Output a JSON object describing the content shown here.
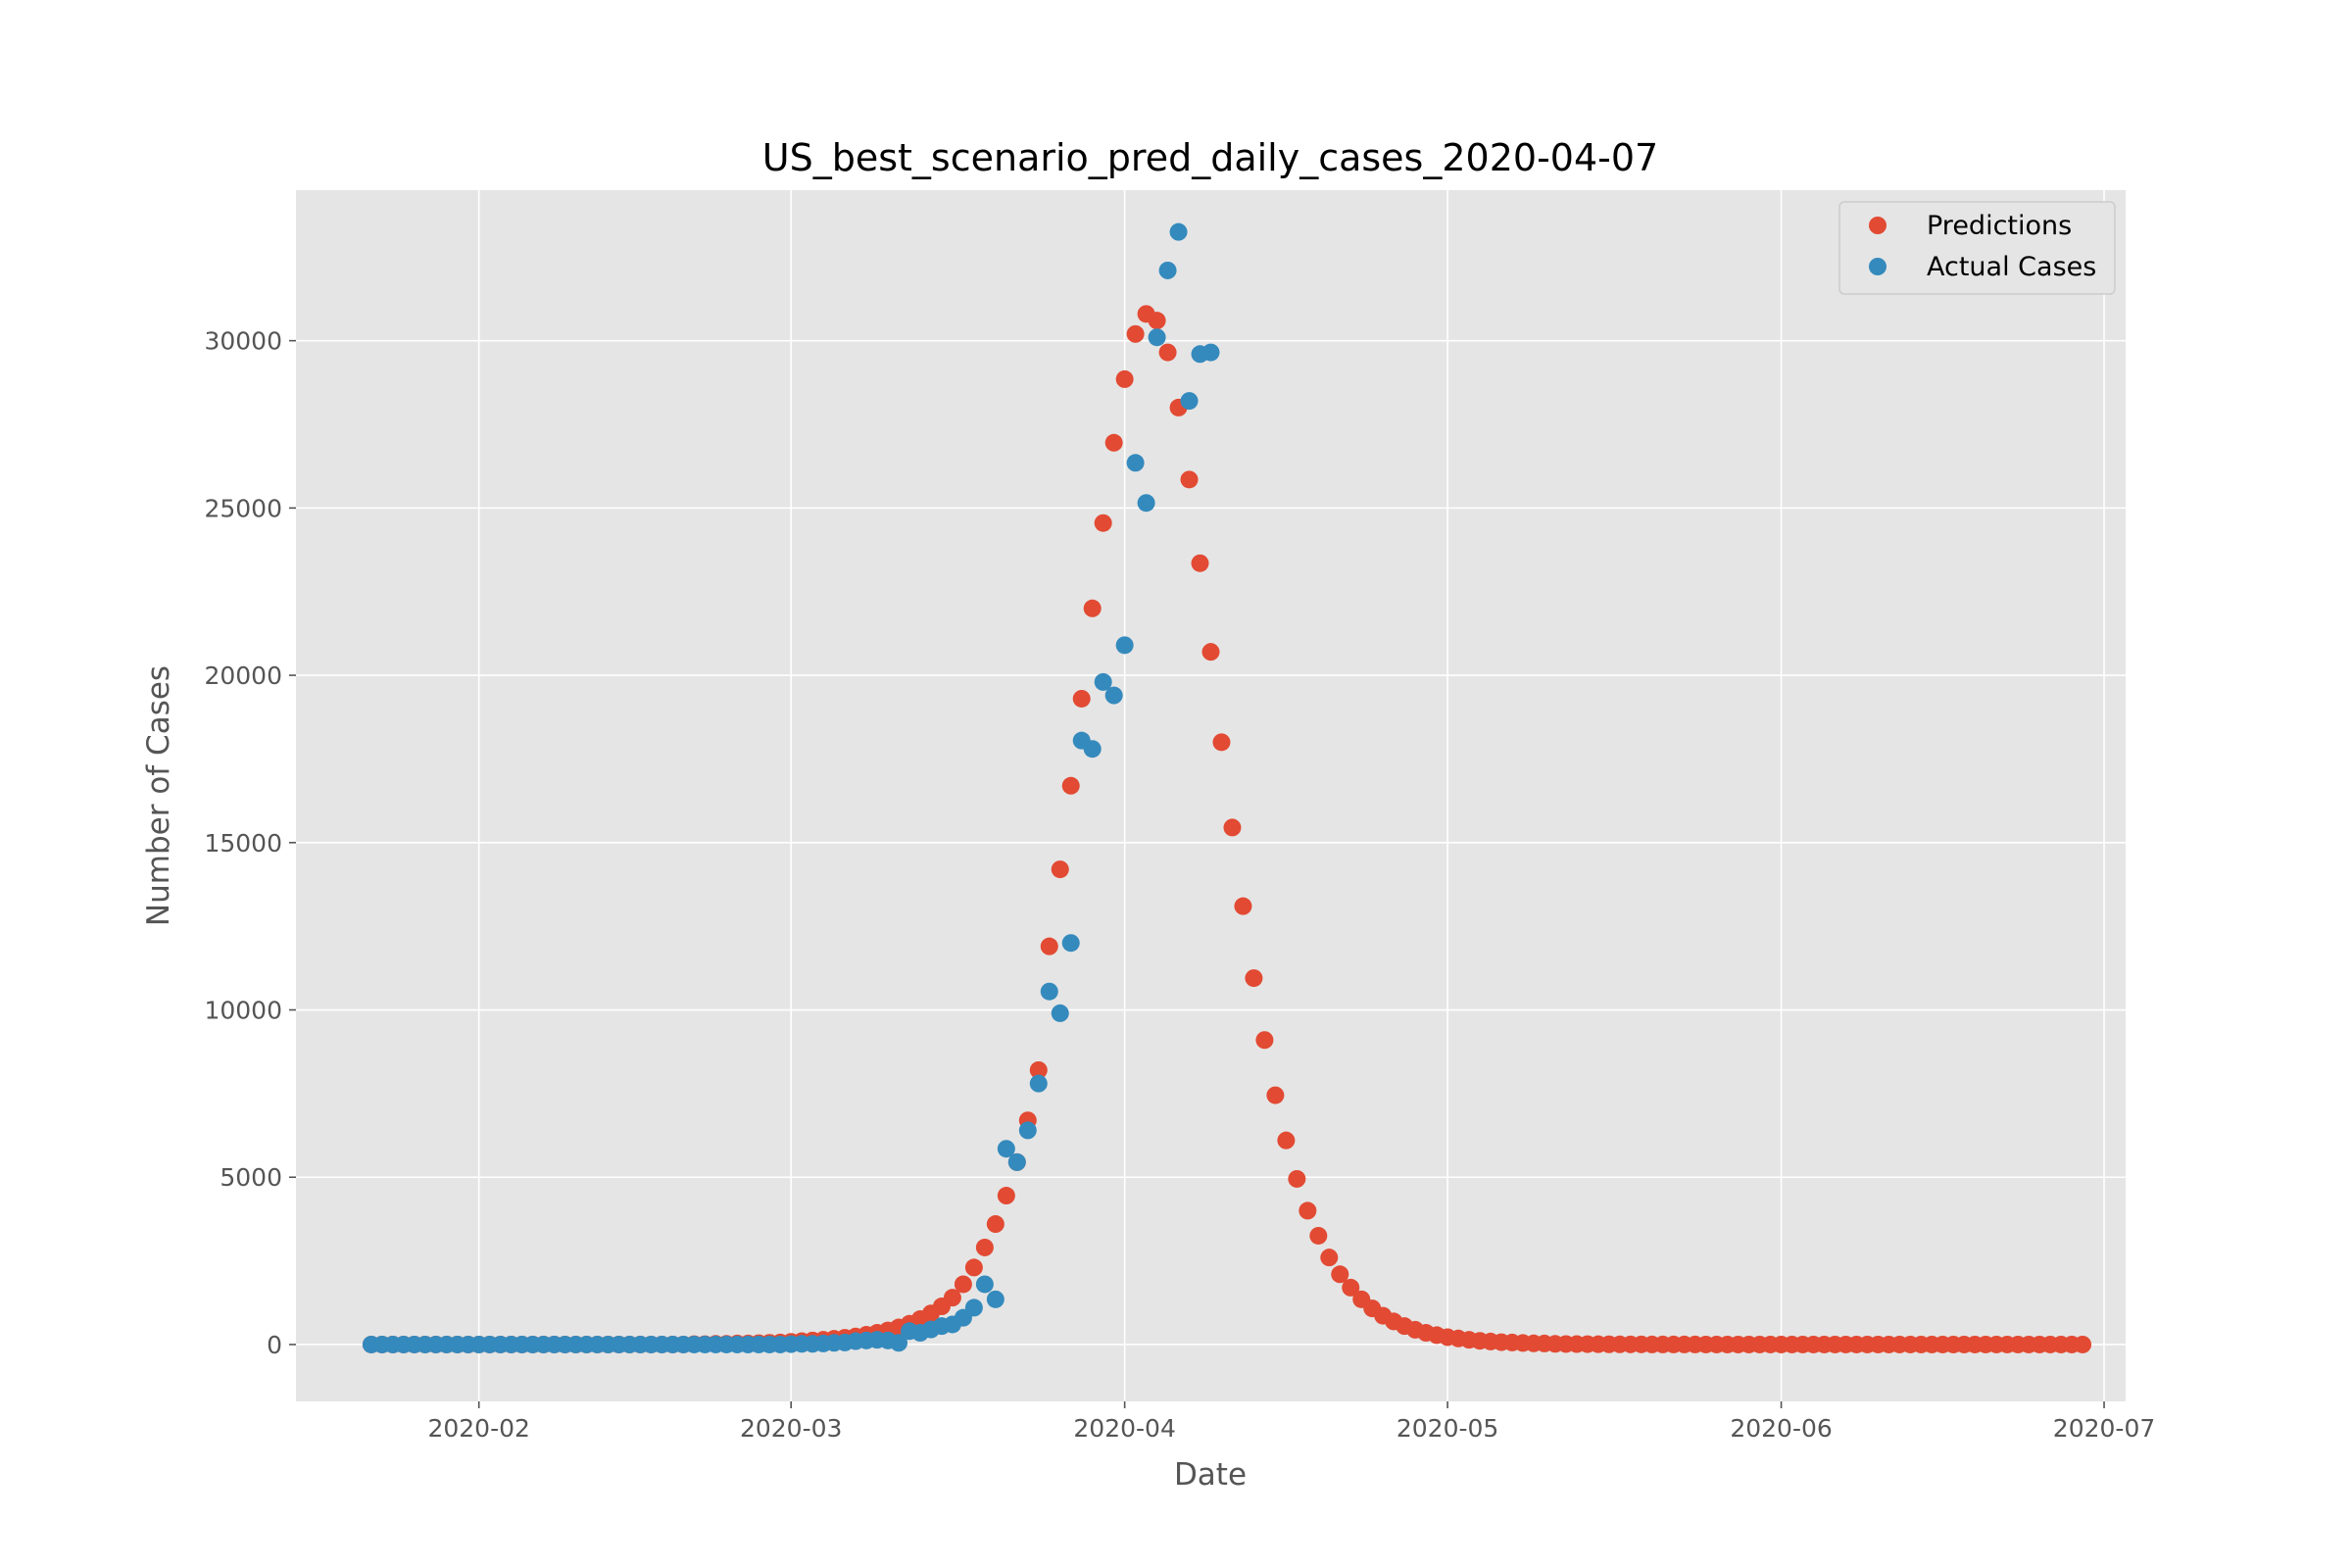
{
  "chart_data": {
    "type": "scatter",
    "title": "US_best_scenario_pred_daily_cases_2020-04-07",
    "xlabel": "Date",
    "ylabel": "Number of Cases",
    "xlim": [
      "2020-01-15",
      "2020-07-03"
    ],
    "ylim": [
      -1700,
      34500
    ],
    "x_ticks": [
      "2020-02",
      "2020-03",
      "2020-04",
      "2020-05",
      "2020-06",
      "2020-07"
    ],
    "y_ticks": [
      0,
      5000,
      10000,
      15000,
      20000,
      25000,
      30000
    ],
    "grid": true,
    "legend_position": "top-right",
    "colors": {
      "Predictions": "#E24A33",
      "Actual Cases": "#348ABD",
      "background": "#E5E5E5",
      "grid": "#FFFFFF"
    },
    "series": [
      {
        "name": "Predictions",
        "points": [
          [
            "2020-01-22",
            0
          ],
          [
            "2020-01-23",
            0
          ],
          [
            "2020-01-24",
            0
          ],
          [
            "2020-01-25",
            0
          ],
          [
            "2020-01-26",
            0
          ],
          [
            "2020-01-27",
            0
          ],
          [
            "2020-01-28",
            0
          ],
          [
            "2020-01-29",
            0
          ],
          [
            "2020-01-30",
            0
          ],
          [
            "2020-01-31",
            0
          ],
          [
            "2020-02-01",
            0
          ],
          [
            "2020-02-02",
            0
          ],
          [
            "2020-02-03",
            0
          ],
          [
            "2020-02-04",
            0
          ],
          [
            "2020-02-05",
            0
          ],
          [
            "2020-02-06",
            0
          ],
          [
            "2020-02-07",
            0
          ],
          [
            "2020-02-08",
            0
          ],
          [
            "2020-02-09",
            0
          ],
          [
            "2020-02-10",
            0
          ],
          [
            "2020-02-11",
            0
          ],
          [
            "2020-02-12",
            0
          ],
          [
            "2020-02-13",
            0
          ],
          [
            "2020-02-14",
            0
          ],
          [
            "2020-02-15",
            0
          ],
          [
            "2020-02-16",
            0
          ],
          [
            "2020-02-17",
            0
          ],
          [
            "2020-02-18",
            0
          ],
          [
            "2020-02-19",
            0
          ],
          [
            "2020-02-20",
            0
          ],
          [
            "2020-02-21",
            10
          ],
          [
            "2020-02-22",
            10
          ],
          [
            "2020-02-23",
            20
          ],
          [
            "2020-02-24",
            20
          ],
          [
            "2020-02-25",
            30
          ],
          [
            "2020-02-26",
            30
          ],
          [
            "2020-02-27",
            40
          ],
          [
            "2020-02-28",
            50
          ],
          [
            "2020-02-29",
            60
          ],
          [
            "2020-03-01",
            80
          ],
          [
            "2020-03-02",
            100
          ],
          [
            "2020-03-03",
            120
          ],
          [
            "2020-03-04",
            140
          ],
          [
            "2020-03-05",
            170
          ],
          [
            "2020-03-06",
            200
          ],
          [
            "2020-03-07",
            240
          ],
          [
            "2020-03-08",
            290
          ],
          [
            "2020-03-09",
            350
          ],
          [
            "2020-03-10",
            420
          ],
          [
            "2020-03-11",
            510
          ],
          [
            "2020-03-12",
            620
          ],
          [
            "2020-03-13",
            760
          ],
          [
            "2020-03-14",
            930
          ],
          [
            "2020-03-15",
            1140
          ],
          [
            "2020-03-16",
            1400
          ],
          [
            "2020-03-17",
            1800
          ],
          [
            "2020-03-18",
            2300
          ],
          [
            "2020-03-19",
            2900
          ],
          [
            "2020-03-20",
            3600
          ],
          [
            "2020-03-21",
            4450
          ],
          [
            "2020-03-22",
            5450
          ],
          [
            "2020-03-23",
            6700
          ],
          [
            "2020-03-24",
            8200
          ],
          [
            "2020-03-25",
            11900
          ],
          [
            "2020-03-26",
            14200
          ],
          [
            "2020-03-27",
            16700
          ],
          [
            "2020-03-28",
            19300
          ],
          [
            "2020-03-29",
            22000
          ],
          [
            "2020-03-30",
            24550
          ],
          [
            "2020-03-31",
            26950
          ],
          [
            "2020-04-01",
            28850
          ],
          [
            "2020-04-02",
            30200
          ],
          [
            "2020-04-03",
            30800
          ],
          [
            "2020-04-04",
            30600
          ],
          [
            "2020-04-05",
            29650
          ],
          [
            "2020-04-06",
            28000
          ],
          [
            "2020-04-07",
            25850
          ],
          [
            "2020-04-08",
            23350
          ],
          [
            "2020-04-09",
            20700
          ],
          [
            "2020-04-10",
            18000
          ],
          [
            "2020-04-11",
            15450
          ],
          [
            "2020-04-12",
            13100
          ],
          [
            "2020-04-13",
            10950
          ],
          [
            "2020-04-14",
            9100
          ],
          [
            "2020-04-15",
            7450
          ],
          [
            "2020-04-16",
            6100
          ],
          [
            "2020-04-17",
            4950
          ],
          [
            "2020-04-18",
            4000
          ],
          [
            "2020-04-19",
            3250
          ],
          [
            "2020-04-20",
            2600
          ],
          [
            "2020-04-21",
            2100
          ],
          [
            "2020-04-22",
            1700
          ],
          [
            "2020-04-23",
            1350
          ],
          [
            "2020-04-24",
            1080
          ],
          [
            "2020-04-25",
            860
          ],
          [
            "2020-04-26",
            690
          ],
          [
            "2020-04-27",
            550
          ],
          [
            "2020-04-28",
            440
          ],
          [
            "2020-04-29",
            350
          ],
          [
            "2020-04-30",
            280
          ],
          [
            "2020-05-01",
            220
          ],
          [
            "2020-05-02",
            180
          ],
          [
            "2020-05-03",
            140
          ],
          [
            "2020-05-04",
            110
          ],
          [
            "2020-05-05",
            90
          ],
          [
            "2020-05-06",
            70
          ],
          [
            "2020-05-07",
            60
          ],
          [
            "2020-05-08",
            45
          ],
          [
            "2020-05-09",
            35
          ],
          [
            "2020-05-10",
            30
          ],
          [
            "2020-05-11",
            20
          ],
          [
            "2020-05-12",
            15
          ],
          [
            "2020-05-13",
            12
          ],
          [
            "2020-05-14",
            10
          ],
          [
            "2020-05-15",
            8
          ],
          [
            "2020-05-16",
            6
          ],
          [
            "2020-05-17",
            5
          ],
          [
            "2020-05-18",
            4
          ],
          [
            "2020-05-19",
            3
          ],
          [
            "2020-05-20",
            2
          ],
          [
            "2020-05-21",
            2
          ],
          [
            "2020-05-22",
            1
          ],
          [
            "2020-05-23",
            1
          ],
          [
            "2020-05-24",
            1
          ],
          [
            "2020-05-25",
            0
          ],
          [
            "2020-05-26",
            0
          ],
          [
            "2020-05-27",
            0
          ],
          [
            "2020-05-28",
            0
          ],
          [
            "2020-05-29",
            0
          ],
          [
            "2020-05-30",
            0
          ],
          [
            "2020-05-31",
            0
          ],
          [
            "2020-06-01",
            0
          ],
          [
            "2020-06-02",
            0
          ],
          [
            "2020-06-03",
            0
          ],
          [
            "2020-06-04",
            0
          ],
          [
            "2020-06-05",
            0
          ],
          [
            "2020-06-06",
            0
          ],
          [
            "2020-06-07",
            0
          ],
          [
            "2020-06-08",
            0
          ],
          [
            "2020-06-09",
            0
          ],
          [
            "2020-06-10",
            0
          ],
          [
            "2020-06-11",
            0
          ],
          [
            "2020-06-12",
            0
          ],
          [
            "2020-06-13",
            0
          ],
          [
            "2020-06-14",
            0
          ],
          [
            "2020-06-15",
            0
          ],
          [
            "2020-06-16",
            0
          ],
          [
            "2020-06-17",
            0
          ],
          [
            "2020-06-18",
            0
          ],
          [
            "2020-06-19",
            0
          ],
          [
            "2020-06-20",
            0
          ],
          [
            "2020-06-21",
            0
          ],
          [
            "2020-06-22",
            0
          ],
          [
            "2020-06-23",
            0
          ],
          [
            "2020-06-24",
            0
          ],
          [
            "2020-06-25",
            0
          ],
          [
            "2020-06-26",
            0
          ],
          [
            "2020-06-27",
            0
          ],
          [
            "2020-06-28",
            0
          ],
          [
            "2020-06-29",
            0
          ]
        ]
      },
      {
        "name": "Actual Cases",
        "points": [
          [
            "2020-01-22",
            0
          ],
          [
            "2020-01-23",
            0
          ],
          [
            "2020-01-24",
            0
          ],
          [
            "2020-01-25",
            0
          ],
          [
            "2020-01-26",
            0
          ],
          [
            "2020-01-27",
            0
          ],
          [
            "2020-01-28",
            0
          ],
          [
            "2020-01-29",
            0
          ],
          [
            "2020-01-30",
            0
          ],
          [
            "2020-01-31",
            0
          ],
          [
            "2020-02-01",
            0
          ],
          [
            "2020-02-02",
            0
          ],
          [
            "2020-02-03",
            0
          ],
          [
            "2020-02-04",
            0
          ],
          [
            "2020-02-05",
            0
          ],
          [
            "2020-02-06",
            0
          ],
          [
            "2020-02-07",
            0
          ],
          [
            "2020-02-08",
            0
          ],
          [
            "2020-02-09",
            0
          ],
          [
            "2020-02-10",
            0
          ],
          [
            "2020-02-11",
            0
          ],
          [
            "2020-02-12",
            0
          ],
          [
            "2020-02-13",
            0
          ],
          [
            "2020-02-14",
            0
          ],
          [
            "2020-02-15",
            0
          ],
          [
            "2020-02-16",
            0
          ],
          [
            "2020-02-17",
            0
          ],
          [
            "2020-02-18",
            0
          ],
          [
            "2020-02-19",
            0
          ],
          [
            "2020-02-20",
            0
          ],
          [
            "2020-02-21",
            0
          ],
          [
            "2020-02-22",
            0
          ],
          [
            "2020-02-23",
            0
          ],
          [
            "2020-02-24",
            0
          ],
          [
            "2020-02-25",
            0
          ],
          [
            "2020-02-26",
            0
          ],
          [
            "2020-02-27",
            0
          ],
          [
            "2020-02-28",
            0
          ],
          [
            "2020-02-29",
            0
          ],
          [
            "2020-03-01",
            10
          ],
          [
            "2020-03-02",
            20
          ],
          [
            "2020-03-03",
            20
          ],
          [
            "2020-03-04",
            30
          ],
          [
            "2020-03-05",
            50
          ],
          [
            "2020-03-06",
            60
          ],
          [
            "2020-03-07",
            100
          ],
          [
            "2020-03-08",
            120
          ],
          [
            "2020-03-09",
            140
          ],
          [
            "2020-03-10",
            120
          ],
          [
            "2020-03-11",
            50
          ],
          [
            "2020-03-12",
            400
          ],
          [
            "2020-03-13",
            350
          ],
          [
            "2020-03-14",
            450
          ],
          [
            "2020-03-15",
            550
          ],
          [
            "2020-03-16",
            600
          ],
          [
            "2020-03-17",
            800
          ],
          [
            "2020-03-18",
            1100
          ],
          [
            "2020-03-19",
            1800
          ],
          [
            "2020-03-20",
            1350
          ],
          [
            "2020-03-21",
            5850
          ],
          [
            "2020-03-22",
            5450
          ],
          [
            "2020-03-23",
            6400
          ],
          [
            "2020-03-24",
            7800
          ],
          [
            "2020-03-25",
            10550
          ],
          [
            "2020-03-26",
            9900
          ],
          [
            "2020-03-27",
            12000
          ],
          [
            "2020-03-28",
            18050
          ],
          [
            "2020-03-29",
            17800
          ],
          [
            "2020-03-30",
            19800
          ],
          [
            "2020-03-31",
            19400
          ],
          [
            "2020-04-01",
            20900
          ],
          [
            "2020-04-02",
            26350
          ],
          [
            "2020-04-03",
            25150
          ],
          [
            "2020-04-04",
            30100
          ],
          [
            "2020-04-05",
            32100
          ],
          [
            "2020-04-06",
            33250
          ],
          [
            "2020-04-07",
            28200
          ],
          [
            "2020-04-08",
            29600
          ],
          [
            "2020-04-09",
            29650
          ]
        ]
      }
    ]
  }
}
